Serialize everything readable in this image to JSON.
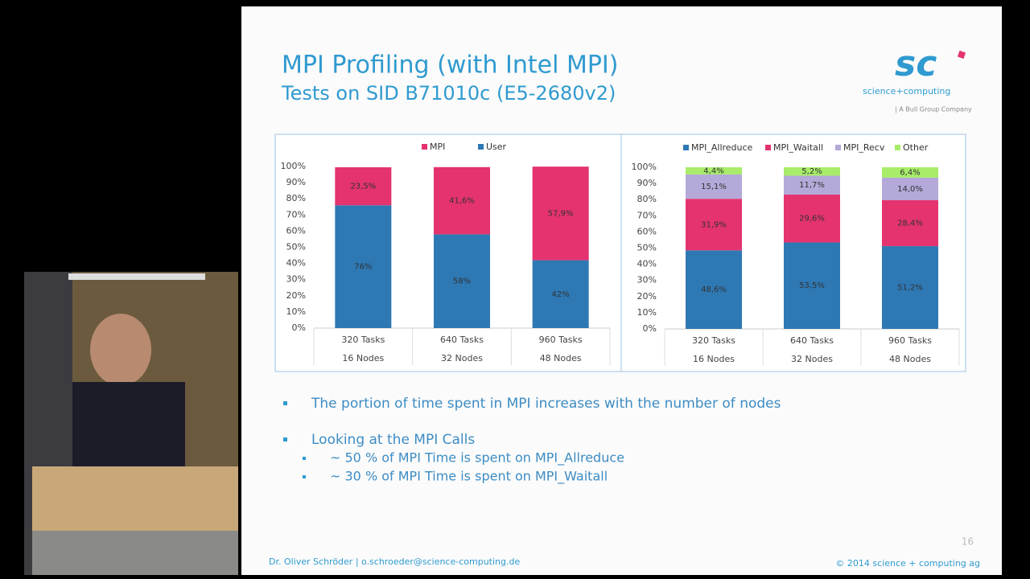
{
  "slide": {
    "title": "MPI Profiling (with Intel MPI)",
    "subtitle": "Tests on SID B71010c (E5-2680v2)",
    "logo": "sc",
    "logo_text": "science+computing",
    "logo_tagline": "| A Bull Group Company",
    "bullets": [
      {
        "text": "The portion of time spent in MPI increases with the number of nodes",
        "sub": []
      },
      {
        "text": "Looking at the MPI Calls",
        "sub": [
          "~ 50 % of MPI Time is spent on MPI_Allreduce",
          "~ 30 % of MPI Time is spent on MPI_Waitall"
        ]
      }
    ],
    "page_number": "16",
    "footer_left": "Dr. Oliver Schröder  |  o.schroeder@science-computing.de",
    "footer_right": "© 2014 science +  computing ag"
  },
  "chart_data": [
    {
      "type": "stacked_bar",
      "categories": [
        "320 Tasks",
        "640 Tasks",
        "960 Tasks"
      ],
      "category_sublabels": [
        "16 Nodes",
        "32 Nodes",
        "48 Nodes"
      ],
      "series": [
        {
          "name": "MPI",
          "color": "#e4336f",
          "values": [
            23.5,
            41.6,
            57.9
          ],
          "value_labels": [
            "23,5%",
            "41,6%",
            "57,9%"
          ],
          "label_color": "#5a2030"
        },
        {
          "name": "User",
          "color": "#2e78b4",
          "values": [
            76,
            58,
            42
          ],
          "value_labels": [
            "76%",
            "58%",
            "42%"
          ],
          "label_color": "#e8f04c"
        }
      ],
      "stack_order": [
        "User",
        "MPI"
      ],
      "ylim": [
        0,
        100
      ],
      "yticks": [
        {
          "value": 0,
          "label": "0%"
        },
        {
          "value": 10,
          "label": "10%"
        },
        {
          "value": 20,
          "label": "20%"
        },
        {
          "value": 30,
          "label": "30%"
        },
        {
          "value": 40,
          "label": "40%"
        },
        {
          "value": 50,
          "label": "50%"
        },
        {
          "value": 60,
          "label": "60%"
        },
        {
          "value": 70,
          "label": "70%"
        },
        {
          "value": 80,
          "label": "80%"
        },
        {
          "value": 90,
          "label": "90%"
        },
        {
          "value": 100,
          "label": "100%"
        }
      ]
    },
    {
      "type": "stacked_bar",
      "categories": [
        "320 Tasks",
        "640 Tasks",
        "960 Tasks"
      ],
      "category_sublabels": [
        "16 Nodes",
        "32 Nodes",
        "48 Nodes"
      ],
      "series": [
        {
          "name": "MPI_Allreduce",
          "color": "#2e78b4",
          "values": [
            48.6,
            53.5,
            51.2
          ],
          "value_labels": [
            "48,6%",
            "53,5%",
            "51,2%"
          ],
          "label_color": "#e8f04c"
        },
        {
          "name": "MPI_Waitall",
          "color": "#e4336f",
          "values": [
            31.9,
            29.6,
            28.4
          ],
          "value_labels": [
            "31,9%",
            "29,6%",
            "28,4%"
          ],
          "label_color": "#5a2030"
        },
        {
          "name": "MPI_Recv",
          "color": "#b4a9d8",
          "values": [
            15.1,
            11.7,
            14.0
          ],
          "value_labels": [
            "15,1%",
            "11,7%",
            "14,0%"
          ],
          "label_color": "#333333"
        },
        {
          "name": "Other",
          "color": "#a8ec6a",
          "values": [
            4.4,
            5.2,
            6.4
          ],
          "value_labels": [
            "4,4%",
            "5,2%",
            "6,4%"
          ],
          "label_color": "#333333"
        }
      ],
      "stack_order": [
        "MPI_Allreduce",
        "MPI_Waitall",
        "MPI_Recv",
        "Other"
      ],
      "ylim": [
        0,
        100
      ],
      "yticks": [
        {
          "value": 0,
          "label": "0%"
        },
        {
          "value": 10,
          "label": "10%"
        },
        {
          "value": 20,
          "label": "20%"
        },
        {
          "value": 30,
          "label": "30%"
        },
        {
          "value": 40,
          "label": "40%"
        },
        {
          "value": 50,
          "label": "50%"
        },
        {
          "value": 60,
          "label": "60%"
        },
        {
          "value": 70,
          "label": "70%"
        },
        {
          "value": 80,
          "label": "80%"
        },
        {
          "value": 90,
          "label": "90%"
        },
        {
          "value": 100,
          "label": "100%"
        }
      ]
    }
  ]
}
